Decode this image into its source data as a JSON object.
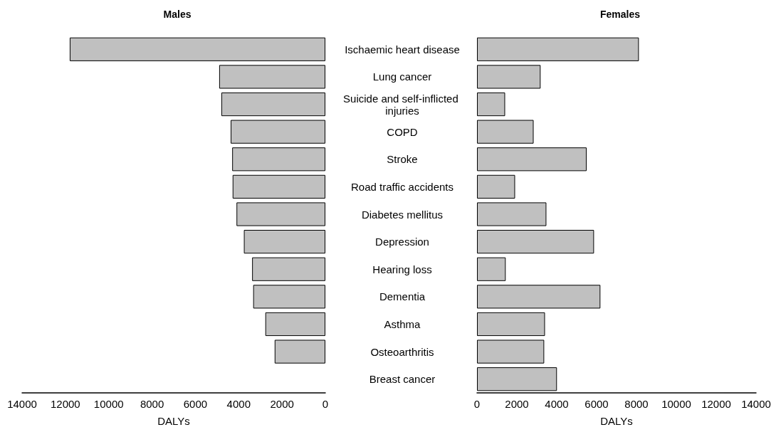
{
  "chart_data": [
    {
      "type": "bar",
      "orientation": "horizontal",
      "title": "Males",
      "xlabel": "DALYs",
      "categories": [
        "Ischaemic heart disease",
        "Lung cancer",
        "Suicide and self-inflicted injuries",
        "COPD",
        "Stroke",
        "Road traffic accidents",
        "Diabetes mellitus",
        "Depression",
        "Hearing loss",
        "Dementia",
        "Asthma",
        "Osteoarthritis",
        "Breast cancer"
      ],
      "values": [
        11800,
        4900,
        4800,
        4370,
        4300,
        4280,
        4100,
        3760,
        3380,
        3330,
        2770,
        2340,
        0
      ],
      "color": "#c0c0c0",
      "xlim": [
        14000,
        0
      ],
      "xticks": [
        14000,
        12000,
        10000,
        8000,
        6000,
        4000,
        2000,
        0
      ],
      "grid": false
    },
    {
      "type": "bar",
      "orientation": "horizontal",
      "title": "Females",
      "xlabel": "DALYs",
      "categories": [
        "Ischaemic heart disease",
        "Lung cancer",
        "Suicide and self-inflicted injuries",
        "COPD",
        "Stroke",
        "Road traffic accidents",
        "Diabetes mellitus",
        "Depression",
        "Hearing loss",
        "Dementia",
        "Asthma",
        "Osteoarthritis",
        "Breast cancer"
      ],
      "values": [
        8120,
        3190,
        1410,
        2840,
        5500,
        1910,
        3480,
        5870,
        1440,
        6190,
        3410,
        3370,
        4010
      ],
      "color": "#c0c0c0",
      "xlim": [
        0,
        14000
      ],
      "xticks": [
        0,
        2000,
        4000,
        6000,
        8000,
        10000,
        12000,
        14000
      ],
      "grid": false,
      "tick_labels": "x"
    }
  ]
}
